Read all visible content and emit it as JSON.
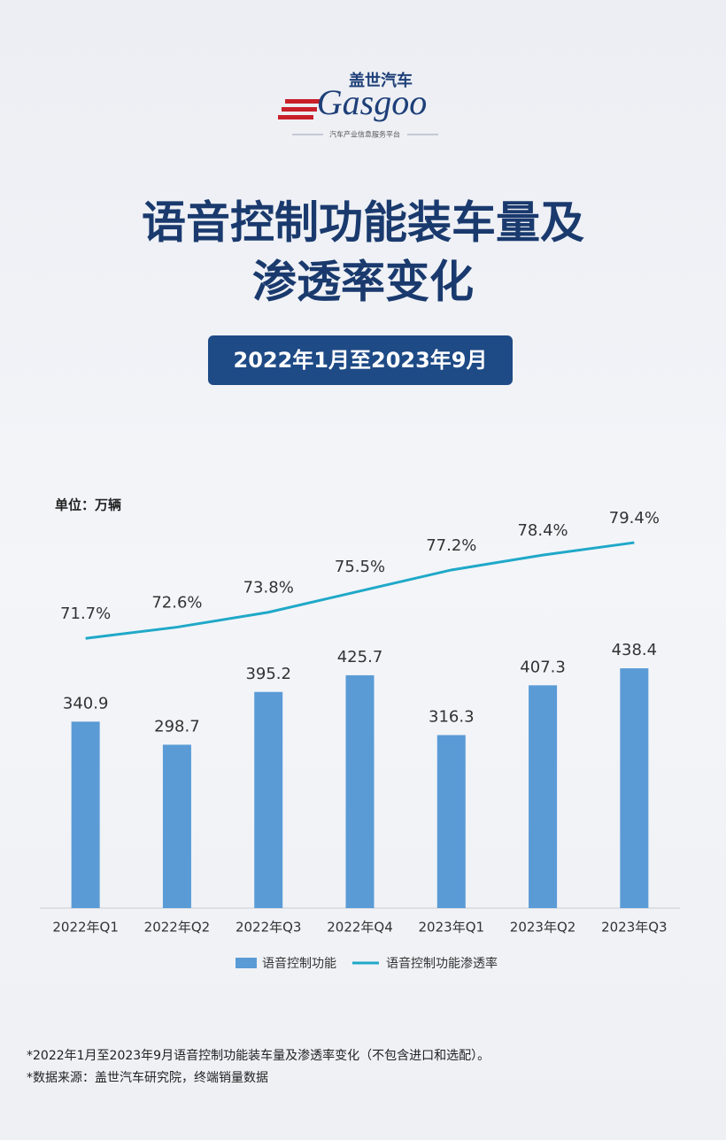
{
  "header": {
    "brand_cn": "盖世汽车",
    "brand_en": "Gasgoo",
    "tagline": "汽车产业信息服务平台"
  },
  "title": [
    "语音控制功能装车量及",
    "渗透率变化"
  ],
  "period": "2022年1月至2023年9月",
  "chart_data": {
    "type": "bar",
    "unit_label": "单位：万辆",
    "categories": [
      "2022年Q1",
      "2022年Q2",
      "2022年Q3",
      "2022年Q4",
      "2023年Q1",
      "2023年Q2",
      "2023年Q3"
    ],
    "series": [
      {
        "name": "语音控制功能",
        "color": "#5a9bd6",
        "type": "bar",
        "values": [
          340.9,
          298.7,
          395.2,
          425.7,
          316.3,
          407.3,
          438.4
        ]
      },
      {
        "name": "语音控制功能渗透率",
        "color": "#1fa8c8",
        "type": "line",
        "axis": "y2",
        "values": [
          71.7,
          72.6,
          73.8,
          75.5,
          77.2,
          78.4,
          79.4
        ],
        "value_labels": [
          "71.7%",
          "72.6%",
          "73.8%",
          "75.5%",
          "77.2%",
          "78.4%",
          "79.4%"
        ]
      }
    ],
    "ylim": [
      0,
      750
    ],
    "y2lim": [
      50,
      83
    ]
  },
  "footnotes": [
    "*2022年1月至2023年9月语音控制功能装车量及渗透率变化（不包含进口和选配）。",
    "*数据来源：盖世汽车研究院，终端销量数据"
  ]
}
